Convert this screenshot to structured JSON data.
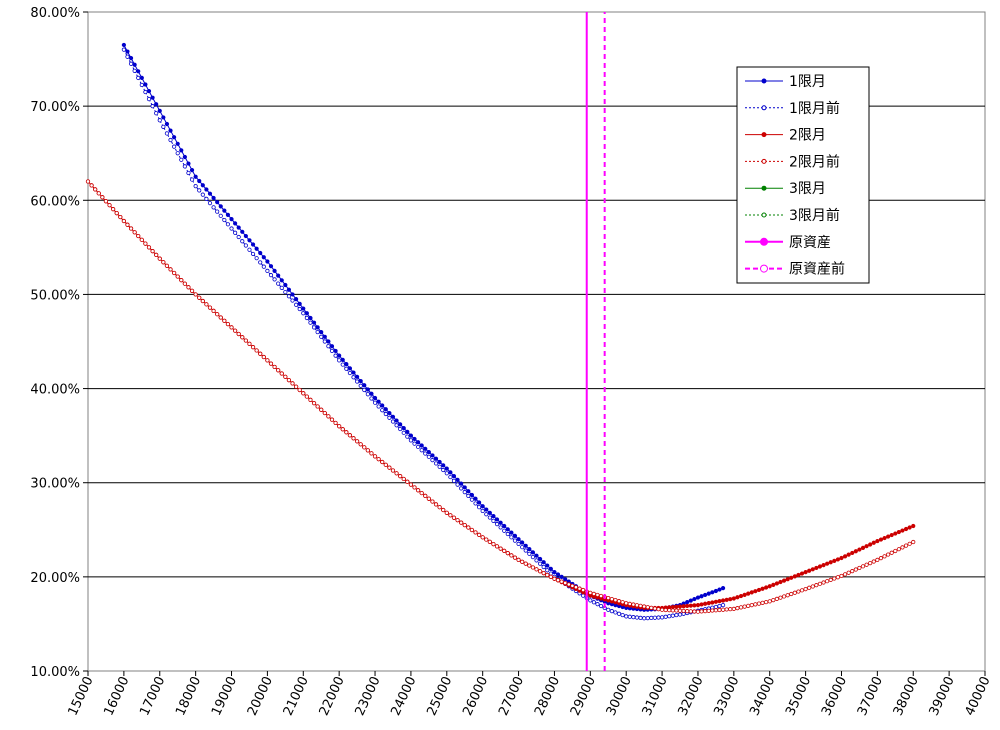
{
  "chart_data": {
    "type": "line",
    "title": "",
    "xlabel": "",
    "ylabel": "",
    "xlim": [
      15000,
      40000
    ],
    "ylim": [
      10,
      80
    ],
    "x_ticks": [
      "15000",
      "16000",
      "17000",
      "18000",
      "19000",
      "20000",
      "21000",
      "22000",
      "23000",
      "24000",
      "25000",
      "26000",
      "27000",
      "28000",
      "29000",
      "30000",
      "31000",
      "32000",
      "33000",
      "34000",
      "35000",
      "36000",
      "37000",
      "38000",
      "39000",
      "40000"
    ],
    "y_ticks": [
      "10.00%",
      "20.00%",
      "30.00%",
      "40.00%",
      "50.00%",
      "60.00%",
      "70.00%",
      "80.00%"
    ],
    "grid": "horizontal",
    "legend_position": "top-right",
    "series": [
      {
        "name": "1限月",
        "color": "#0000CC",
        "style": "solid-filled-dots",
        "x": [
          16000,
          17000,
          18000,
          19000,
          20000,
          21000,
          22000,
          23000,
          24000,
          25000,
          26000,
          27000,
          28000,
          29000,
          29500,
          30000,
          30500,
          31000,
          31500,
          32000,
          32500,
          32700
        ],
        "y": [
          76.5,
          69.5,
          62.5,
          58.0,
          53.5,
          48.5,
          43.5,
          39.0,
          35.0,
          31.5,
          27.5,
          24.0,
          20.5,
          18.0,
          17.2,
          16.7,
          16.5,
          16.6,
          17.0,
          17.8,
          18.5,
          18.8
        ]
      },
      {
        "name": "1限月前",
        "color": "#0000CC",
        "style": "dotted-open-dots",
        "x": [
          16000,
          17000,
          18000,
          19000,
          20000,
          21000,
          22000,
          23000,
          24000,
          25000,
          26000,
          27000,
          28000,
          29000,
          29500,
          30000,
          30500,
          31000,
          31500,
          32000,
          32500,
          32700
        ],
        "y": [
          76.0,
          68.5,
          61.5,
          57.0,
          52.5,
          48.0,
          43.0,
          38.5,
          34.5,
          31.0,
          27.0,
          23.5,
          20.0,
          17.5,
          16.5,
          15.8,
          15.6,
          15.7,
          16.0,
          16.4,
          16.8,
          17.0
        ]
      },
      {
        "name": "2限月",
        "color": "#CC0000",
        "style": "solid-filled-dots",
        "x": [
          15000,
          16000,
          17000,
          18000,
          19000,
          20000,
          21000,
          22000,
          23000,
          24000,
          25000,
          26000,
          27000,
          28000,
          29000,
          30000,
          30500,
          31000,
          32000,
          33000,
          34000,
          35000,
          36000,
          37000,
          38000
        ],
        "y": [
          62.0,
          57.8,
          53.8,
          50.0,
          46.5,
          43.0,
          39.5,
          36.0,
          32.8,
          29.8,
          26.8,
          24.2,
          21.8,
          19.8,
          18.0,
          17.0,
          16.7,
          16.7,
          17.0,
          17.7,
          19.0,
          20.5,
          22.0,
          23.8,
          25.4
        ]
      },
      {
        "name": "2限月前",
        "color": "#CC0000",
        "style": "dotted-open-dots",
        "x": [
          15000,
          16000,
          17000,
          18000,
          19000,
          20000,
          21000,
          22000,
          23000,
          24000,
          25000,
          26000,
          27000,
          28000,
          29000,
          30000,
          31000,
          32000,
          33000,
          34000,
          35000,
          36000,
          37000,
          38000
        ],
        "y": [
          62.0,
          57.8,
          53.8,
          50.0,
          46.5,
          43.0,
          39.5,
          36.0,
          32.8,
          29.8,
          26.8,
          24.2,
          21.8,
          19.8,
          18.3,
          17.2,
          16.5,
          16.3,
          16.6,
          17.4,
          18.7,
          20.1,
          21.8,
          23.7
        ]
      },
      {
        "name": "3限月",
        "color": "#008000",
        "style": "solid-filled-dots",
        "x": [],
        "y": []
      },
      {
        "name": "3限月前",
        "color": "#008000",
        "style": "dotted-open-dots",
        "x": [],
        "y": []
      },
      {
        "name": "原資産",
        "color": "#FF00FF",
        "style": "solid-vertical",
        "x": [
          28900,
          28900
        ],
        "y": [
          10,
          80
        ]
      },
      {
        "name": "原資産前",
        "color": "#FF00FF",
        "style": "dashed-vertical",
        "x": [
          29400,
          29400
        ],
        "y": [
          10,
          80
        ]
      }
    ]
  }
}
